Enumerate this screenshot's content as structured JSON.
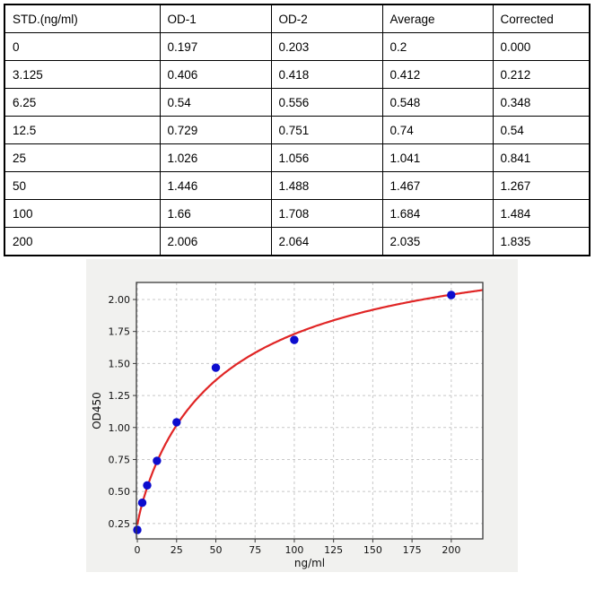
{
  "table": {
    "headers": [
      "STD.(ng/ml)",
      "OD-1",
      "OD-2",
      "Average",
      "Corrected"
    ],
    "rows": [
      [
        "0",
        "0.197",
        "0.203",
        "0.2",
        "0.000"
      ],
      [
        "3.125",
        "0.406",
        "0.418",
        "0.412",
        "0.212"
      ],
      [
        "6.25",
        "0.54",
        "0.556",
        "0.548",
        "0.348"
      ],
      [
        "12.5",
        "0.729",
        "0.751",
        "0.74",
        "0.54"
      ],
      [
        "25",
        "1.026",
        "1.056",
        "1.041",
        "0.841"
      ],
      [
        "50",
        "1.446",
        "1.488",
        "1.467",
        "1.267"
      ],
      [
        "100",
        "1.66",
        "1.708",
        "1.684",
        "1.484"
      ],
      [
        "200",
        "2.006",
        "2.064",
        "2.035",
        "1.835"
      ]
    ]
  },
  "chart_data": {
    "type": "scatter",
    "title": "",
    "xlabel": "ng/ml",
    "ylabel": "OD450",
    "x": [
      0,
      3.125,
      6.25,
      12.5,
      25,
      50,
      100,
      200
    ],
    "y": [
      0.2,
      0.412,
      0.548,
      0.74,
      1.041,
      1.467,
      1.684,
      2.035
    ],
    "fit_curve": {
      "model": "4PL",
      "params": {
        "a": 0.24,
        "d": 2.6,
        "c": 55,
        "b": 0.9
      },
      "x_range": [
        0,
        220
      ]
    },
    "xlim": [
      -0.6,
      220.1
    ],
    "ylim": [
      0.13,
      2.133
    ],
    "x_ticks": [
      0,
      25,
      50,
      75,
      100,
      125,
      150,
      175,
      200
    ],
    "x_tick_labels": [
      "0",
      "25",
      "50",
      "75",
      "100",
      "125",
      "150",
      "175",
      "200"
    ],
    "y_ticks": [
      0.25,
      0.5,
      0.75,
      1.0,
      1.25,
      1.5,
      1.75,
      2.0
    ],
    "y_tick_labels": [
      "0.25",
      "0.50",
      "0.75",
      "1.00",
      "1.25",
      "1.50",
      "1.75",
      "2.00"
    ],
    "grid": "dashed",
    "legend": "none",
    "colors": {
      "point": "#0c0cce",
      "curve": "#e02525",
      "figure_bg": "#f1f1ef",
      "plot_bg": "#ffffff",
      "grid": "#c8c8c8",
      "spine": "#3a3a3a",
      "text": "#111111"
    }
  }
}
